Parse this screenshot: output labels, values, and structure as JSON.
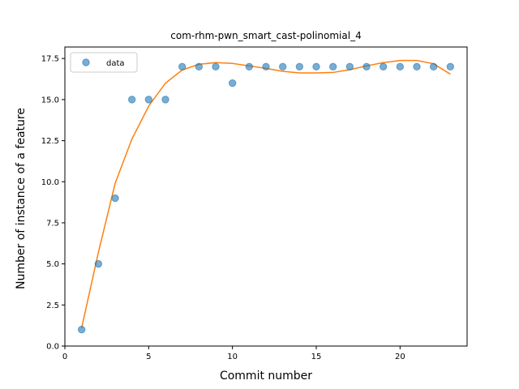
{
  "chart_data": {
    "type": "scatter",
    "title": "com-rhm-pwn_smart_cast-polinomial_4",
    "xlabel": "Commit number",
    "ylabel": "Number of instance of a feature",
    "xlim": [
      0,
      24
    ],
    "ylim": [
      0,
      18.2
    ],
    "xticks": [
      0,
      5,
      10,
      15,
      20
    ],
    "yticks": [
      0.0,
      2.5,
      5.0,
      7.5,
      10.0,
      12.5,
      15.0,
      17.5
    ],
    "xtick_labels": [
      "0",
      "5",
      "10",
      "15",
      "20"
    ],
    "ytick_labels": [
      "0.0",
      "2.5",
      "5.0",
      "7.5",
      "10.0",
      "12.5",
      "15.0",
      "17.5"
    ],
    "legend_position": "top-left",
    "grid": false,
    "series": [
      {
        "name": "data",
        "kind": "scatter",
        "color": "#1f77b4",
        "x": [
          1,
          2,
          3,
          4,
          5,
          6,
          7,
          8,
          9,
          10,
          11,
          12,
          13,
          14,
          15,
          16,
          17,
          18,
          19,
          20,
          21,
          22,
          23
        ],
        "y": [
          1,
          5,
          9,
          15,
          15,
          15,
          17,
          17,
          17,
          16,
          17,
          17,
          17,
          17,
          17,
          17,
          17,
          17,
          17,
          17,
          17,
          17,
          17
        ]
      },
      {
        "kind": "line",
        "color": "#ff7f0e",
        "x": [
          1,
          2,
          3,
          4,
          5,
          6,
          7,
          8,
          9,
          10,
          11,
          12,
          13,
          14,
          15,
          16,
          17,
          18,
          19,
          20,
          21,
          22,
          23
        ],
        "y": [
          1.1,
          5.7,
          9.9,
          12.6,
          14.6,
          16.0,
          16.8,
          17.15,
          17.25,
          17.2,
          17.05,
          16.9,
          16.72,
          16.62,
          16.62,
          16.65,
          16.82,
          17.05,
          17.25,
          17.38,
          17.38,
          17.18,
          16.55
        ]
      }
    ]
  }
}
